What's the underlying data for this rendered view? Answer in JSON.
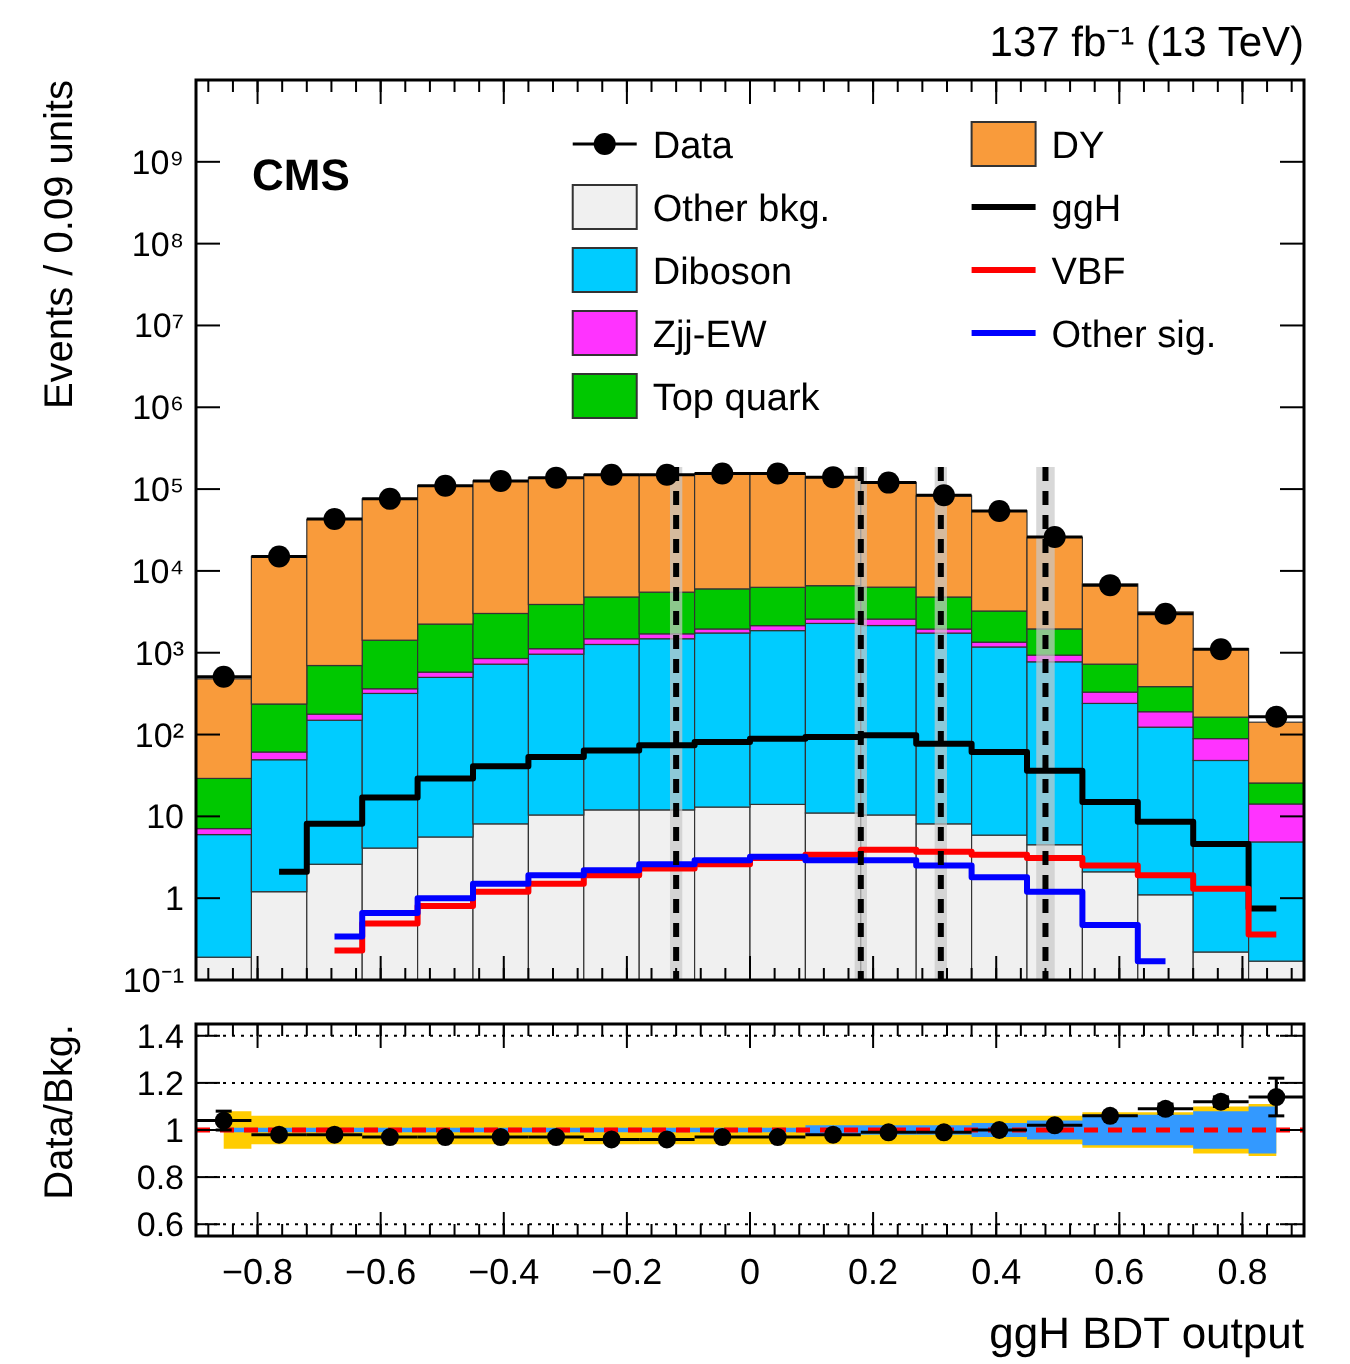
{
  "chart_data": [
    {
      "type": "bar",
      "title": "137 fb⁻¹ (13 TeV)",
      "ylabel": "Events / 0.09 units",
      "annotations": [
        "CMS"
      ],
      "stacked": true,
      "log": "y",
      "legend": "top right",
      "tick_labels": "y",
      "marker": "circle",
      "x": [
        -0.855,
        -0.765,
        -0.675,
        -0.585,
        -0.495,
        -0.405,
        -0.315,
        -0.225,
        -0.135,
        -0.045,
        0.045,
        0.135,
        0.225,
        0.315,
        0.405,
        0.495,
        0.585,
        0.675,
        0.765,
        0.855
      ],
      "xlim": [
        -0.9,
        0.9
      ],
      "xticks": [
        -0.8,
        -0.6,
        -0.4,
        -0.2,
        0,
        0.2,
        0.4,
        0.6,
        0.8
      ],
      "ylim": [
        0.1,
        10000000000
      ],
      "yticks": [
        {
          "value": 0.1,
          "label": "10⁻¹"
        },
        1,
        10,
        {
          "value": 100,
          "label": "10²"
        },
        {
          "value": 1000,
          "label": "10³"
        },
        {
          "value": 10000,
          "label": "10⁴"
        },
        {
          "value": 100000,
          "label": "10⁵"
        },
        {
          "value": 1000000,
          "label": "10⁶"
        },
        {
          "value": 10000000,
          "label": "10⁷"
        },
        {
          "value": 100000000,
          "label": "10⁸"
        },
        {
          "value": 1000000000,
          "label": "10⁹"
        }
      ],
      "series": [
        {
          "name": "Data",
          "type": "scatter",
          "color": "#000000",
          "values": [
            510,
            15000,
            43000,
            76000,
            110000,
            126000,
            138000,
            150000,
            150000,
            155000,
            155000,
            140000,
            120000,
            84000,
            54000,
            26000,
            6700,
            3000,
            1100,
            165
          ],
          "xerrors": [
            0.045,
            0.045,
            0.045,
            0.045,
            0.045,
            0.045,
            0.045,
            0.045,
            0.045,
            0.045,
            0.045,
            0.045,
            0.045,
            0.045,
            0.045,
            0.045,
            0.045,
            0.045,
            0.045,
            0.045
          ]
        },
        {
          "name": "Other bkg.",
          "color": "#f0f0f0",
          "values": [
            0.19,
            1.2,
            2.6,
            4.1,
            5.6,
            8.1,
            10.4,
            12,
            12,
            13,
            14,
            11,
            10.4,
            8.1,
            5.9,
            4.5,
            2.1,
            1.1,
            0.22,
            0.17
          ]
        },
        {
          "name": "Diboson",
          "color": "#00ccff",
          "values": [
            5.8,
            48,
            147,
            314,
            494,
            717,
            950,
            1250,
            1470,
            1730,
            1850,
            2270,
            2140,
            1730,
            1170,
            770,
            238,
            122,
            48,
            4.7
          ]
        },
        {
          "name": "Zjj-EW",
          "color": "#ff33ff",
          "values": [
            1.1,
            12,
            28,
            45,
            80,
            125,
            160,
            220,
            220,
            210,
            280,
            300,
            430,
            210,
            170,
            160,
            90,
            67,
            41,
            9.3
          ]
        },
        {
          "name": "Top quark",
          "color": "#00c800",
          "values": [
            22,
            175,
            520,
            1060,
            1660,
            2170,
            2770,
            3320,
            3800,
            4080,
            4160,
            4020,
            3750,
            2850,
            1890,
            1020,
            395,
            195,
            74,
            11.4
          ]
        },
        {
          "name": "DY",
          "color": "#f99b3b",
          "values": [
            450,
            14800,
            42000,
            74600,
            108000,
            123000,
            134000,
            145000,
            145000,
            149000,
            149000,
            133000,
            114000,
            78000,
            51000,
            23800,
            6200,
            2770,
            960,
            116
          ]
        },
        {
          "name": "ggH",
          "type": "step",
          "marker": "none",
          "color": "#000000",
          "values": [
            null,
            2.1,
            8.1,
            17,
            29,
            41,
            53,
            64,
            74,
            81,
            89,
            93,
            98,
            77,
            61,
            36,
            15,
            8.6,
            4.6,
            0.75
          ]
        },
        {
          "name": "VBF",
          "type": "step",
          "marker": "none",
          "color": "#ff0000",
          "values": [
            null,
            null,
            0.23,
            0.49,
            0.8,
            1.2,
            1.5,
            1.9,
            2.3,
            2.6,
            3.1,
            3.4,
            3.9,
            3.7,
            3.4,
            3.1,
            2.5,
            1.9,
            1.3,
            0.36
          ]
        },
        {
          "name": "Other sig.",
          "type": "step",
          "marker": "none",
          "color": "#0000ff",
          "values": [
            null,
            null,
            0.34,
            0.66,
            1.0,
            1.5,
            1.9,
            2.2,
            2.6,
            2.9,
            3.2,
            2.9,
            2.9,
            2.5,
            1.8,
            1.2,
            0.47,
            0.17,
            null,
            null
          ]
        }
      ],
      "ref_lines": [
        {
          "axis": "x",
          "value": -0.12,
          "line_style": "dashed",
          "color": "#000000"
        },
        {
          "axis": "x",
          "value": 0.18,
          "line_style": "dashed",
          "color": "#000000"
        },
        {
          "axis": "x",
          "value": 0.31,
          "line_style": "dashed",
          "color": "#000000"
        },
        {
          "axis": "x",
          "value": 0.48,
          "line_style": "dashed",
          "color": "#000000"
        }
      ],
      "bands": [
        {
          "axis": "x",
          "from": -0.13,
          "to": -0.11,
          "color": "#c8c8c8"
        },
        {
          "axis": "x",
          "from": 0.17,
          "to": 0.19,
          "color": "#c8c8c8"
        },
        {
          "axis": "x",
          "from": 0.3,
          "to": 0.32,
          "color": "#c8c8c8"
        },
        {
          "axis": "x",
          "from": 0.465,
          "to": 0.495,
          "color": "#c8c8c8"
        }
      ]
    },
    {
      "type": "scatter",
      "xlabel": "ggH BDT output",
      "ylabel": "Data/Bkg.",
      "grid": "y",
      "marker": "circle",
      "x": [
        -0.855,
        -0.765,
        -0.675,
        -0.585,
        -0.495,
        -0.405,
        -0.315,
        -0.225,
        -0.135,
        -0.045,
        0.045,
        0.135,
        0.225,
        0.315,
        0.405,
        0.495,
        0.585,
        0.675,
        0.765,
        0.855
      ],
      "xlim": [
        -0.9,
        0.9
      ],
      "xticks": [
        {
          "value": -0.8,
          "label": "−0.8"
        },
        {
          "value": -0.6,
          "label": "−0.6"
        },
        {
          "value": -0.4,
          "label": "−0.4"
        },
        {
          "value": -0.2,
          "label": "−0.2"
        },
        0,
        0.2,
        0.4,
        0.6,
        0.8
      ],
      "ylim": [
        0.55,
        1.45
      ],
      "yticks": [
        0.6,
        0.8,
        1,
        1.2,
        1.4
      ],
      "series": [
        {
          "type": "step",
          "marker": "none",
          "color": "#ffcc00",
          "values": [
            null,
            null,
            null,
            null,
            null,
            null,
            null,
            null,
            null,
            null,
            null,
            null,
            null,
            null,
            null,
            null,
            null,
            null,
            null,
            null
          ],
          "lower": [
            0.92,
            0.94,
            0.94,
            0.94,
            0.94,
            0.94,
            0.94,
            0.94,
            0.94,
            0.94,
            0.94,
            0.94,
            0.94,
            0.94,
            0.94,
            0.94,
            0.925,
            0.925,
            0.9,
            0.89
          ],
          "upper": [
            1.08,
            1.06,
            1.06,
            1.06,
            1.06,
            1.06,
            1.06,
            1.06,
            1.06,
            1.06,
            1.06,
            1.06,
            1.06,
            1.06,
            1.06,
            1.06,
            1.075,
            1.075,
            1.1,
            1.11
          ]
        },
        {
          "type": "step",
          "marker": "none",
          "color": "#3399ff",
          "values": [
            null,
            null,
            null,
            null,
            null,
            null,
            null,
            null,
            null,
            null,
            null,
            null,
            null,
            null,
            null,
            null,
            null,
            null,
            null,
            null
          ],
          "lower": [
            0.99,
            0.99,
            0.99,
            0.99,
            0.99,
            0.99,
            0.99,
            0.99,
            0.99,
            0.99,
            0.99,
            0.98,
            0.98,
            0.98,
            0.97,
            0.96,
            0.935,
            0.935,
            0.92,
            0.9
          ],
          "upper": [
            1.01,
            1.01,
            1.01,
            1.01,
            1.01,
            1.01,
            1.01,
            1.01,
            1.01,
            1.01,
            1.01,
            1.02,
            1.02,
            1.02,
            1.03,
            1.04,
            1.065,
            1.065,
            1.08,
            1.1
          ]
        },
        {
          "color": "#000000",
          "values": [
            1.04,
            0.98,
            0.98,
            0.97,
            0.97,
            0.97,
            0.97,
            0.96,
            0.96,
            0.97,
            0.97,
            0.98,
            0.99,
            0.99,
            1.0,
            1.02,
            1.06,
            1.09,
            1.12,
            1.14
          ],
          "errors": [
            0.04,
            null,
            null,
            null,
            null,
            null,
            null,
            null,
            null,
            null,
            null,
            null,
            null,
            null,
            null,
            null,
            null,
            0.02,
            0.02,
            0.08
          ],
          "xerrors": [
            0.045,
            0.045,
            0.045,
            0.045,
            0.045,
            0.045,
            0.045,
            0.045,
            0.045,
            0.045,
            0.045,
            0.045,
            0.045,
            0.045,
            0.045,
            0.045,
            0.045,
            0.045,
            0.045,
            0.045
          ]
        }
      ],
      "ref_lines": [
        {
          "axis": "y",
          "value": 1,
          "line_style": "dashed",
          "color": "#ff0000"
        }
      ]
    }
  ]
}
